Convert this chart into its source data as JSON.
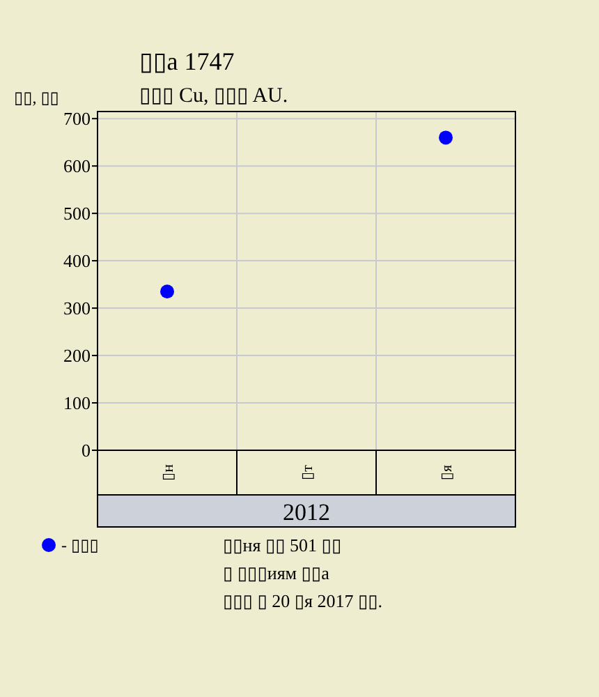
{
  "chart_data": {
    "type": "scatter",
    "title": "▯▯а 1747",
    "subtitle": "▯▯▯ Cu, ▯▯▯ AU.",
    "ylabel": "▯▯, ▯▯",
    "xlabel": "2012",
    "categories": [
      "▯н",
      "▯т",
      "▯я"
    ],
    "series": [
      {
        "name": "- ▯▯▯",
        "color": "#0000ff",
        "values": [
          335,
          null,
          660
        ]
      }
    ],
    "ylim": [
      0,
      715
    ],
    "yticks": [
      0,
      100,
      200,
      300,
      400,
      500,
      600,
      700
    ],
    "grid": true,
    "marker": "circle",
    "legend": "bottom left",
    "annotations": [
      "▯▯ня ▯▯ 501 ▯▯",
      "▯ ▯▯▯иям ▯▯а",
      "▯▯▯ ▯ 20 ▯я 2017 ▯▯."
    ]
  }
}
